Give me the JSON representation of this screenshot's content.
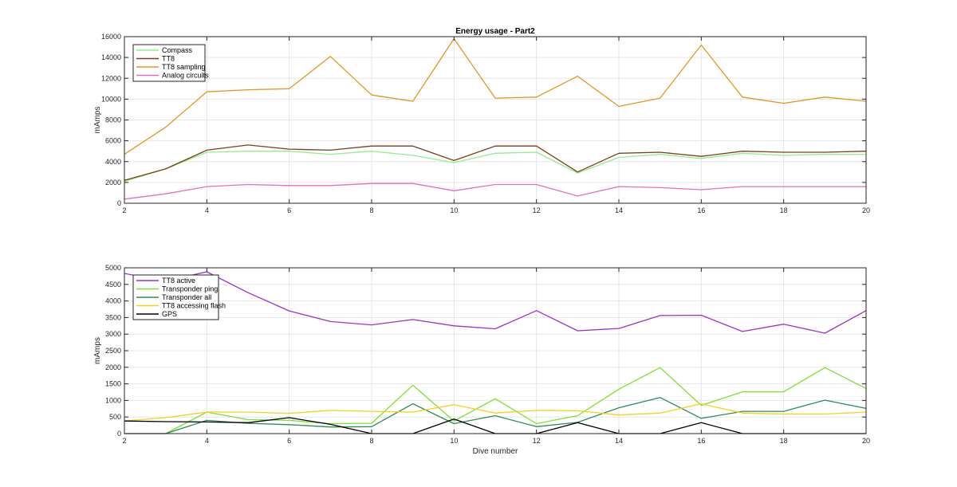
{
  "figure": {
    "background": "#ffffff"
  },
  "chart_data": [
    {
      "type": "line",
      "title": "Energy usage - Part2",
      "xlabel": "",
      "ylabel": "mAmps",
      "xlim": [
        2,
        20
      ],
      "ylim": [
        0,
        16000
      ],
      "xticks": [
        2,
        4,
        6,
        8,
        10,
        12,
        14,
        16,
        18,
        20
      ],
      "yticks": [
        0,
        2000,
        4000,
        6000,
        8000,
        10000,
        12000,
        14000,
        16000
      ],
      "grid": true,
      "legend_position": "top-left",
      "x": [
        2,
        3,
        4,
        5,
        6,
        7,
        8,
        9,
        10,
        11,
        12,
        13,
        14,
        15,
        16,
        17,
        18,
        19,
        20
      ],
      "series": [
        {
          "name": "Compass",
          "color": "#90ee90",
          "values": [
            2100,
            3300,
            4900,
            5000,
            5000,
            4700,
            5000,
            4600,
            3900,
            4800,
            4900,
            2900,
            4400,
            4700,
            4300,
            4800,
            4600,
            4700,
            4700
          ]
        },
        {
          "name": "TT8",
          "color": "#7b3f1c",
          "values": [
            2200,
            3300,
            5100,
            5600,
            5200,
            5100,
            5500,
            5500,
            4100,
            5500,
            5500,
            3000,
            4800,
            4900,
            4500,
            5000,
            4900,
            4900,
            5000
          ]
        },
        {
          "name": "TT8 sampling",
          "color": "#e69520",
          "values": [
            4700,
            7300,
            10700,
            10900,
            11000,
            14100,
            10400,
            9800,
            15800,
            10100,
            10200,
            12200,
            9300,
            10100,
            15200,
            10200,
            9600,
            10200,
            9800
          ]
        },
        {
          "name": "Analog circuits",
          "color": "#e86fb3",
          "values": [
            400,
            900,
            1600,
            1800,
            1700,
            1700,
            1900,
            1900,
            1200,
            1800,
            1800,
            700,
            1600,
            1500,
            1300,
            1600,
            1600,
            1600,
            1600
          ]
        }
      ]
    },
    {
      "type": "line",
      "title": "",
      "xlabel": "Dive number",
      "ylabel": "mAmps",
      "xlim": [
        2,
        20
      ],
      "ylim": [
        0,
        5000
      ],
      "xticks": [
        2,
        4,
        6,
        8,
        10,
        12,
        14,
        16,
        18,
        20
      ],
      "yticks": [
        0,
        500,
        1000,
        1500,
        2000,
        2500,
        3000,
        3500,
        4000,
        4500,
        5000
      ],
      "grid": true,
      "legend_position": "top-left",
      "x": [
        2,
        3,
        4,
        5,
        6,
        7,
        8,
        9,
        10,
        11,
        12,
        13,
        14,
        15,
        16,
        17,
        18,
        19,
        20
      ],
      "series": [
        {
          "name": "TT8 active",
          "color": "#9932cc",
          "values": [
            4830,
            4600,
            4880,
            4250,
            3700,
            3380,
            3280,
            3440,
            3250,
            3160,
            3710,
            3100,
            3170,
            3560,
            3570,
            3080,
            3300,
            3030,
            3710
          ]
        },
        {
          "name": "Transponder ping",
          "color": "#7fe02e",
          "values": [
            0,
            0,
            650,
            420,
            400,
            300,
            310,
            1460,
            380,
            1050,
            300,
            540,
            1340,
            1990,
            850,
            1260,
            1260,
            1990,
            1360
          ]
        },
        {
          "name": "Transponder all",
          "color": "#2e8b57",
          "values": [
            0,
            0,
            400,
            310,
            270,
            200,
            210,
            900,
            300,
            540,
            210,
            340,
            780,
            1090,
            460,
            670,
            670,
            1010,
            760
          ]
        },
        {
          "name": "TT8 accessing flash",
          "color": "#f2d21b",
          "values": [
            380,
            480,
            650,
            650,
            610,
            700,
            670,
            650,
            870,
            620,
            700,
            690,
            560,
            620,
            900,
            620,
            590,
            590,
            650
          ]
        },
        {
          "name": "GPS",
          "color": "#000000",
          "values": [
            380,
            360,
            350,
            330,
            480,
            280,
            0,
            0,
            440,
            0,
            0,
            330,
            0,
            0,
            330,
            0,
            0,
            0,
            0
          ]
        }
      ]
    }
  ]
}
